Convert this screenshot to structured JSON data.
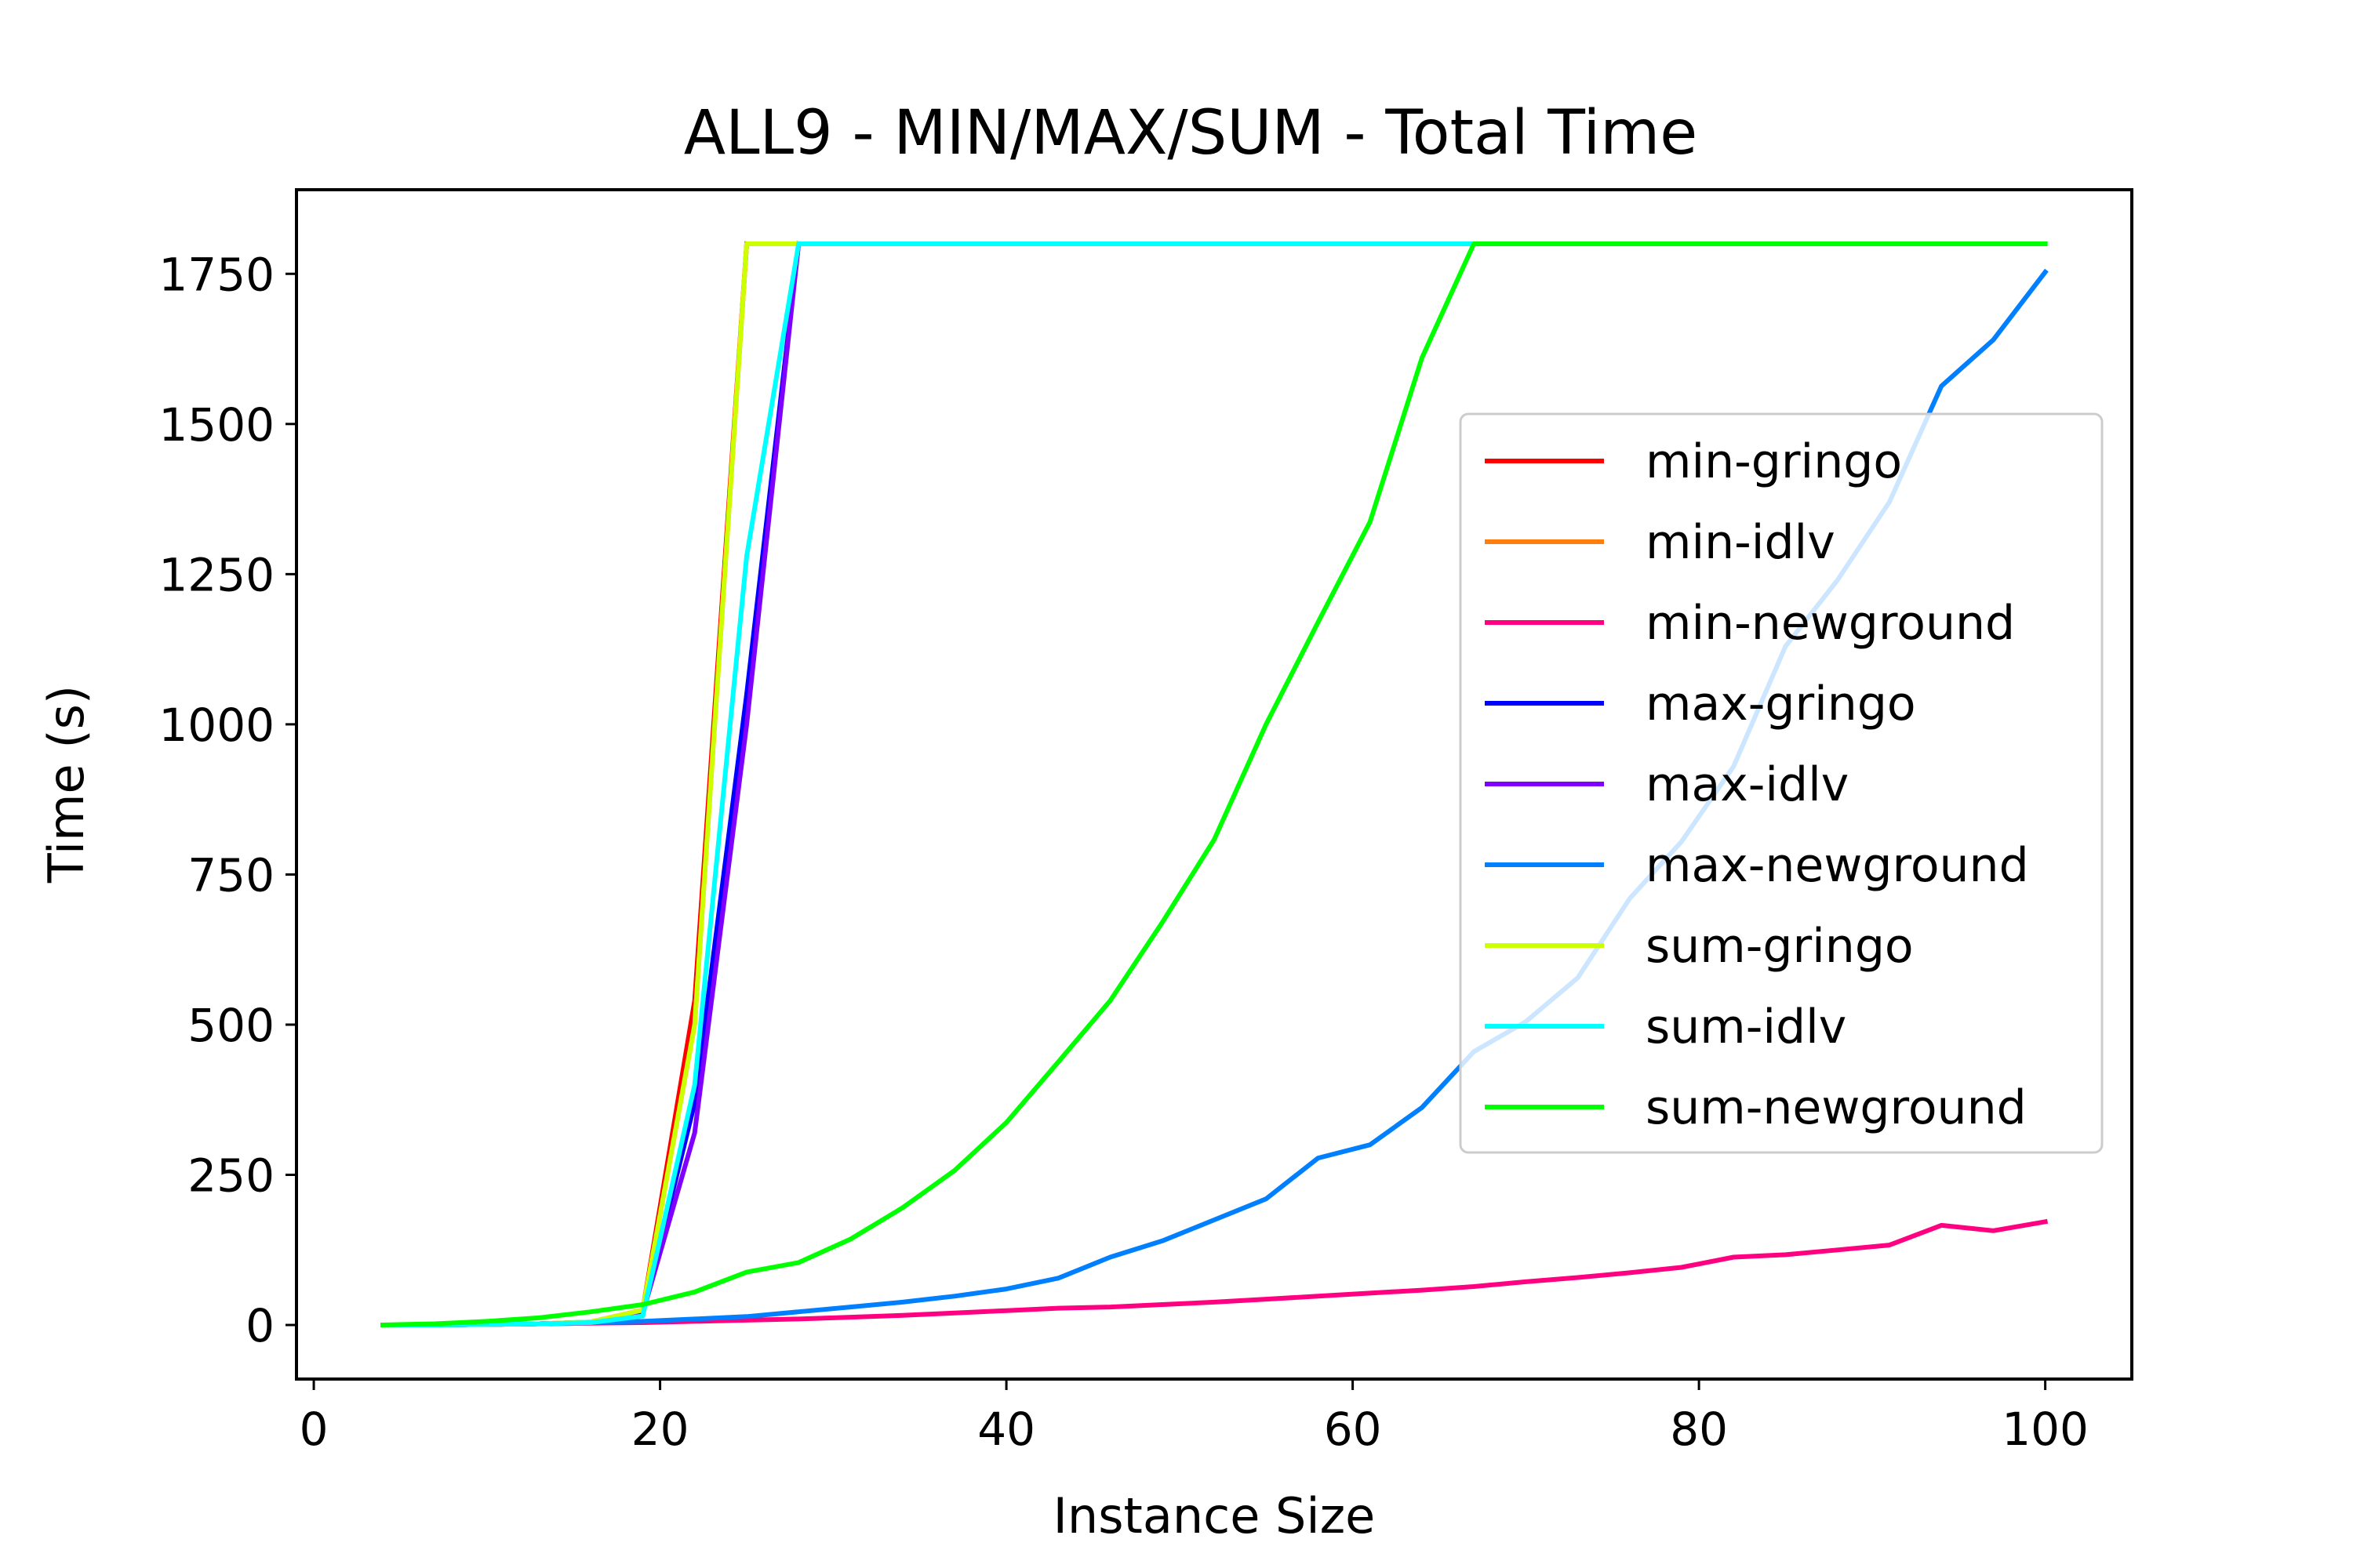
{
  "chart_data": {
    "type": "line",
    "title": "ALL9 - MIN/MAX/SUM - Total Time",
    "xlabel": "Instance Size",
    "ylabel": "Time (s)",
    "xlim": [
      -1,
      105
    ],
    "ylim": [
      -90,
      1890
    ],
    "xticks": [
      0,
      20,
      40,
      60,
      80,
      100
    ],
    "yticks": [
      0,
      250,
      500,
      750,
      1000,
      1250,
      1500,
      1750
    ],
    "grid": false,
    "legend_position": "center-right",
    "series": [
      {
        "name": "min-gringo",
        "color": "#ff0000",
        "x": [
          4,
          7,
          10,
          13,
          16,
          19,
          22,
          25
        ],
        "y": [
          0,
          0,
          1,
          2,
          5,
          25,
          540,
          1800
        ]
      },
      {
        "name": "min-idlv",
        "color": "#ff7f0e",
        "x": [
          4,
          7,
          10,
          13,
          16,
          19,
          22,
          25
        ],
        "y": [
          0,
          0,
          1,
          2,
          5,
          25,
          500,
          1800
        ]
      },
      {
        "name": "min-newground",
        "color": "#ff0080",
        "x": [
          4,
          7,
          10,
          13,
          16,
          19,
          22,
          25,
          28,
          31,
          34,
          37,
          40,
          43,
          46,
          49,
          52,
          55,
          58,
          61,
          64,
          67,
          70,
          73,
          76,
          79,
          82,
          85,
          88,
          91,
          94,
          97,
          100
        ],
        "y": [
          0,
          0,
          1,
          2,
          3,
          4,
          6,
          8,
          10,
          13,
          16,
          20,
          24,
          28,
          30,
          34,
          38,
          43,
          48,
          53,
          58,
          64,
          72,
          79,
          87,
          96,
          113,
          117,
          125,
          133,
          166,
          157,
          172
        ]
      },
      {
        "name": "max-gringo",
        "color": "#0000ff",
        "x": [
          4,
          7,
          10,
          13,
          16,
          19,
          22,
          25,
          28
        ],
        "y": [
          0,
          0,
          1,
          2,
          4,
          20,
          370,
          1050,
          1800
        ]
      },
      {
        "name": "max-idlv",
        "color": "#8000ff",
        "x": [
          4,
          7,
          10,
          13,
          16,
          19,
          22,
          25,
          28
        ],
        "y": [
          0,
          0,
          1,
          2,
          4,
          20,
          320,
          1000,
          1800
        ]
      },
      {
        "name": "max-newground",
        "color": "#0080ff",
        "x": [
          4,
          7,
          10,
          13,
          16,
          19,
          22,
          25,
          28,
          31,
          34,
          37,
          40,
          43,
          46,
          49,
          52,
          55,
          58,
          61,
          64,
          67,
          70,
          73,
          76,
          79,
          82,
          85,
          88,
          91,
          94,
          97,
          100
        ],
        "y": [
          0,
          0,
          1,
          2,
          4,
          6,
          10,
          14,
          22,
          30,
          38,
          48,
          60,
          78,
          113,
          140,
          175,
          210,
          278,
          300,
          362,
          455,
          505,
          578,
          710,
          805,
          930,
          1130,
          1240,
          1370,
          1563,
          1640,
          1753
        ]
      },
      {
        "name": "sum-gringo",
        "color": "#ccff00",
        "x": [
          4,
          7,
          10,
          13,
          16,
          19,
          22,
          25,
          28
        ],
        "y": [
          0,
          0,
          1,
          2,
          5,
          25,
          500,
          1800,
          1800
        ]
      },
      {
        "name": "sum-idlv",
        "color": "#00ffff",
        "x": [
          4,
          7,
          10,
          13,
          16,
          19,
          22,
          25,
          28,
          31,
          34,
          37,
          40,
          43,
          46,
          49,
          52,
          55,
          58,
          61,
          64,
          67,
          70,
          73,
          76,
          79,
          82,
          85,
          88,
          91,
          94,
          97,
          100
        ],
        "y": [
          0,
          0,
          1,
          2,
          4,
          15,
          400,
          1280,
          1800,
          1800,
          1800,
          1800,
          1800,
          1800,
          1800,
          1800,
          1800,
          1800,
          1800,
          1800,
          1800,
          1800,
          1800,
          1800,
          1800,
          1800,
          1800,
          1800,
          1800,
          1800,
          1800,
          1800,
          1800
        ]
      },
      {
        "name": "sum-newground",
        "color": "#00ff00",
        "x": [
          4,
          7,
          10,
          13,
          16,
          19,
          22,
          25,
          28,
          31,
          34,
          37,
          40,
          43,
          46,
          49,
          52,
          55,
          58,
          61,
          64,
          67,
          70,
          73,
          76,
          79,
          82,
          85,
          88,
          91,
          94,
          97,
          100
        ],
        "y": [
          0,
          2,
          6,
          12,
          22,
          34,
          55,
          88,
          104,
          143,
          195,
          257,
          337,
          438,
          540,
          670,
          808,
          1000,
          1170,
          1337,
          1610,
          1800,
          1800,
          1800,
          1800,
          1800,
          1800,
          1800,
          1800,
          1800,
          1800,
          1800,
          1800
        ]
      }
    ]
  }
}
